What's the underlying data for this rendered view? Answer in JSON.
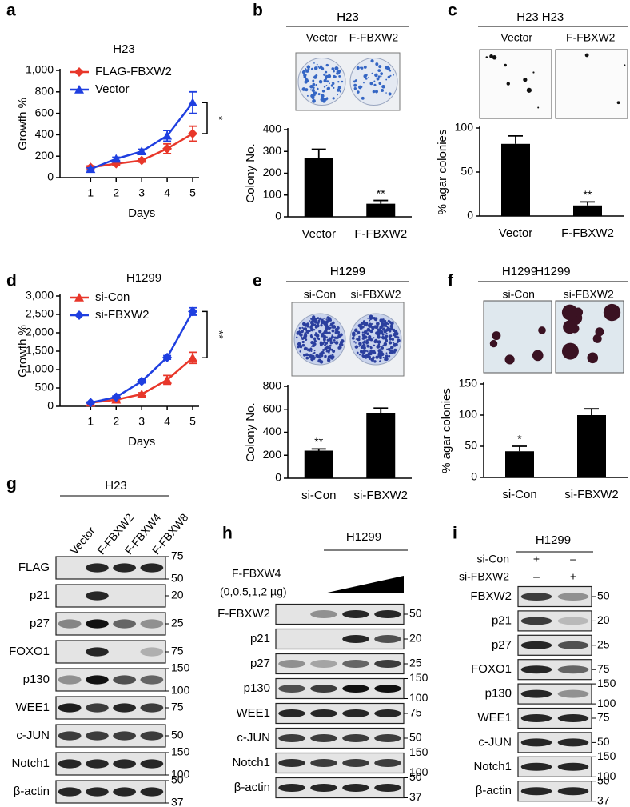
{
  "chart_data": [
    {
      "panel": "a",
      "type": "line",
      "title": "H23",
      "x": [
        1,
        2,
        3,
        4,
        5
      ],
      "xlim": [
        -0.2,
        5.5
      ],
      "xticks": [
        1,
        2,
        3,
        4,
        5
      ],
      "ylim": [
        0,
        1000
      ],
      "yticks": [
        0,
        200,
        400,
        600,
        800,
        {
          "value": 1000,
          "label": "1,000"
        }
      ],
      "xlabel": "Days",
      "ylabel": "Growth %",
      "legend": "upper left",
      "significance": "*",
      "series": [
        {
          "name": "FLAG-FBXW2",
          "color": "#e8372a",
          "marker": "diamond",
          "values": [
            95,
            130,
            160,
            270,
            410
          ],
          "errors": [
            15,
            15,
            15,
            45,
            70
          ]
        },
        {
          "name": "Vector",
          "color": "#1f3fe0",
          "marker": "triangle",
          "values": [
            80,
            175,
            245,
            390,
            700
          ],
          "errors": [
            10,
            15,
            20,
            50,
            100
          ]
        }
      ]
    },
    {
      "panel": "b",
      "type": "bar",
      "title": "H23",
      "image_labels": [
        "Vector",
        "F-FBXW2"
      ],
      "categories": [
        "Vector",
        "F-FBXW2"
      ],
      "values": [
        270,
        60
      ],
      "errors": [
        40,
        15
      ],
      "significance": [
        null,
        "**"
      ],
      "color": "#000000",
      "ylim": [
        0,
        400
      ],
      "yticks": [
        0,
        100,
        200,
        300,
        400
      ],
      "ylabel": "Colony No."
    },
    {
      "panel": "c",
      "type": "bar",
      "title": "H23",
      "image_labels": [
        "Vector",
        "F-FBXW2"
      ],
      "categories": [
        "Vector",
        "F-FBXW2"
      ],
      "values": [
        82,
        12
      ],
      "errors": [
        9,
        4
      ],
      "significance": [
        null,
        "**"
      ],
      "color": "#000000",
      "ylim": [
        0,
        100
      ],
      "yticks": [
        0,
        50,
        100
      ],
      "ylabel": "% agar colonies"
    },
    {
      "panel": "d",
      "type": "line",
      "title": "H1299",
      "x": [
        1,
        2,
        3,
        4,
        5
      ],
      "xlim": [
        -0.2,
        5.5
      ],
      "xticks": [
        1,
        2,
        3,
        4,
        5
      ],
      "ylim": [
        0,
        3000
      ],
      "yticks": [
        0,
        500,
        {
          "value": 1000,
          "label": "1,000"
        },
        {
          "value": 1500,
          "label": "1,500"
        },
        {
          "value": 2000,
          "label": "2,000"
        },
        {
          "value": 2500,
          "label": "2,500"
        },
        {
          "value": 3000,
          "label": "3,000"
        }
      ],
      "xlabel": "Days",
      "ylabel": "Growth %",
      "legend": "upper left",
      "significance": "**",
      "series": [
        {
          "name": "si-Con",
          "color": "#e8372a",
          "marker": "triangle",
          "values": [
            100,
            180,
            330,
            720,
            1320
          ],
          "errors": [
            20,
            30,
            40,
            120,
            150
          ]
        },
        {
          "name": "si-FBXW2",
          "color": "#1f3fe0",
          "marker": "diamond",
          "values": [
            100,
            250,
            680,
            1330,
            2580
          ],
          "errors": [
            20,
            30,
            40,
            50,
            100
          ]
        }
      ]
    },
    {
      "panel": "e",
      "type": "bar",
      "title": "H1299",
      "image_labels": [
        "si-Con",
        "si-FBXW2"
      ],
      "categories": [
        "si-Con",
        "si-FBXW2"
      ],
      "values": [
        240,
        565
      ],
      "errors": [
        15,
        45
      ],
      "significance": [
        "**",
        null
      ],
      "color": "#000000",
      "ylim": [
        0,
        800
      ],
      "yticks": [
        0,
        200,
        400,
        600,
        800
      ],
      "ylabel": "Colony No."
    },
    {
      "panel": "f",
      "type": "bar",
      "title": "H1299",
      "image_labels": [
        "si-Con",
        "si-FBXW2"
      ],
      "categories": [
        "si-Con",
        "si-FBXW2"
      ],
      "values": [
        42,
        100
      ],
      "errors": [
        8,
        10
      ],
      "significance": [
        "*",
        null
      ],
      "color": "#000000",
      "ylim": [
        0,
        150
      ],
      "yticks": [
        0,
        50,
        100,
        150
      ],
      "ylabel": "% agar colonies"
    }
  ],
  "blots": [
    {
      "panel": "g",
      "title": "H23",
      "lanes": [
        "Vector",
        "F-FBXW2",
        "F-FBXW4",
        "F-FBXW8"
      ],
      "rows": [
        {
          "label": "FLAG",
          "markers": [
            75,
            50
          ]
        },
        {
          "label": "p21",
          "markers": [
            20
          ]
        },
        {
          "label": "p27",
          "markers": [
            25
          ]
        },
        {
          "label": "FOXO1",
          "markers": [
            75
          ]
        },
        {
          "label": "p130",
          "markers": [
            150,
            100
          ]
        },
        {
          "label": "WEE1",
          "markers": [
            75
          ]
        },
        {
          "label": "c-JUN",
          "markers": [
            50
          ]
        },
        {
          "label": "Notch1",
          "markers": [
            150,
            100
          ]
        },
        {
          "label": "β-actin",
          "markers": [
            50,
            37
          ]
        }
      ]
    },
    {
      "panel": "h",
      "title": "H1299",
      "treatment": "F-FBXW4",
      "dose": "(0,0.5,1,2 µg)",
      "rows": [
        {
          "label": "F-FBXW2",
          "markers": [
            50
          ]
        },
        {
          "label": "p21",
          "markers": [
            20
          ]
        },
        {
          "label": "p27",
          "markers": [
            25
          ]
        },
        {
          "label": "p130",
          "markers": [
            150,
            100
          ]
        },
        {
          "label": "WEE1",
          "markers": [
            75
          ]
        },
        {
          "label": "c-JUN",
          "markers": [
            50
          ]
        },
        {
          "label": "Notch1",
          "markers": [
            150,
            100
          ]
        },
        {
          "label": "β-actin",
          "markers": [
            50,
            37
          ]
        }
      ]
    },
    {
      "panel": "i",
      "title": "H1299",
      "conditions": [
        {
          "label": "si-Con",
          "signs": [
            "+",
            "–"
          ]
        },
        {
          "label": "si-FBXW2",
          "signs": [
            "–",
            "+"
          ]
        }
      ],
      "rows": [
        {
          "label": "FBXW2",
          "markers": [
            50
          ]
        },
        {
          "label": "p21",
          "markers": [
            20
          ]
        },
        {
          "label": "p27",
          "markers": [
            25
          ]
        },
        {
          "label": "FOXO1",
          "markers": [
            75
          ]
        },
        {
          "label": "p130",
          "markers": [
            150,
            100
          ]
        },
        {
          "label": "WEE1",
          "markers": [
            75
          ]
        },
        {
          "label": "c-JUN",
          "markers": [
            50
          ]
        },
        {
          "label": "Notch1",
          "markers": [
            150,
            100
          ]
        },
        {
          "label": "β-actin",
          "markers": [
            50,
            37
          ]
        }
      ]
    }
  ]
}
